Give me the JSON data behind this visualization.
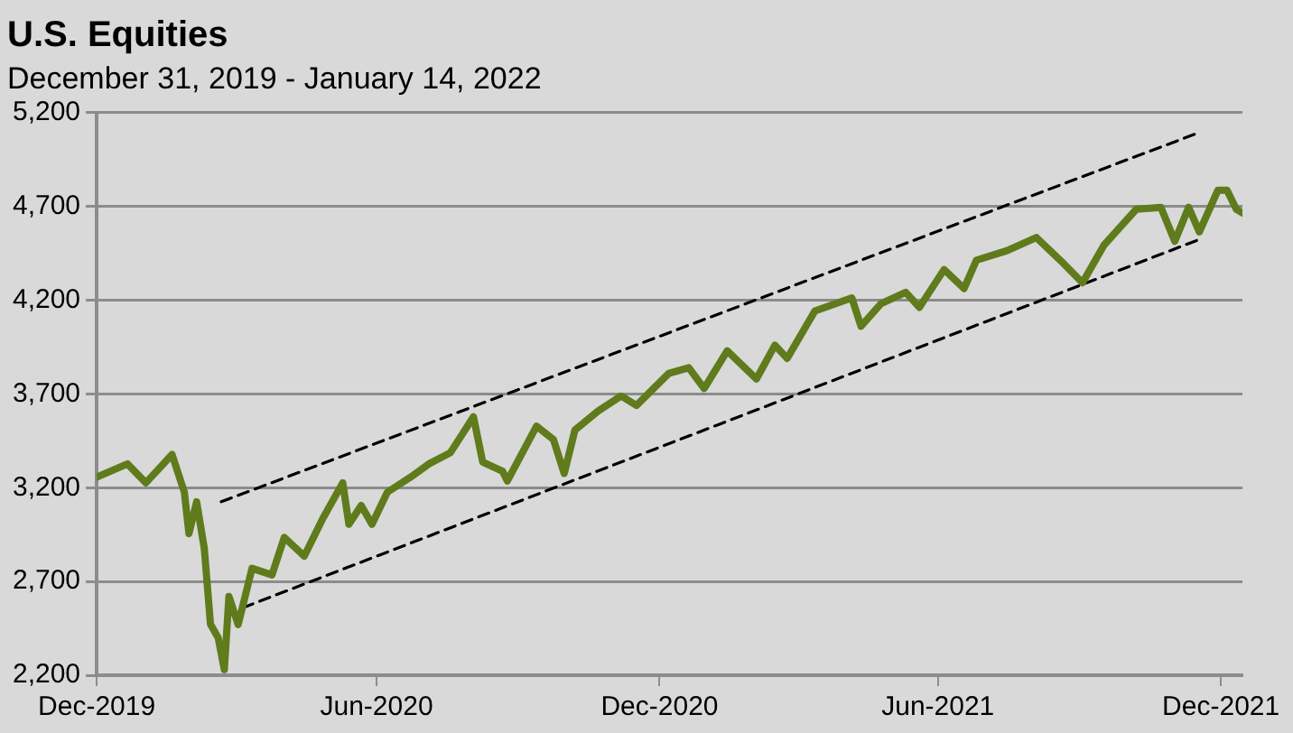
{
  "chart_data": {
    "type": "line",
    "title": "U.S. Equities",
    "subtitle": "December 31, 2019 - January 14, 2022",
    "x": [
      "2019-12-31",
      "2020-01-20",
      "2020-02-01",
      "2020-02-18",
      "2020-02-26",
      "2020-02-29",
      "2020-03-05",
      "2020-03-10",
      "2020-03-14",
      "2020-03-19",
      "2020-03-23",
      "2020-03-26",
      "2020-04-01",
      "2020-04-10",
      "2020-04-23",
      "2020-05-01",
      "2020-05-14",
      "2020-05-26",
      "2020-06-08",
      "2020-06-12",
      "2020-06-20",
      "2020-06-27",
      "2020-07-07",
      "2020-07-22",
      "2020-08-03",
      "2020-08-17",
      "2020-09-01",
      "2020-09-07",
      "2020-09-20",
      "2020-09-23",
      "2020-10-12",
      "2020-10-23",
      "2020-10-30",
      "2020-11-06",
      "2020-11-21",
      "2020-12-06",
      "2020-12-16",
      "2021-01-06",
      "2021-01-19",
      "2021-01-29",
      "2021-02-13",
      "2021-03-04",
      "2021-03-16",
      "2021-03-24",
      "2021-04-11",
      "2021-05-05",
      "2021-05-11",
      "2021-05-24",
      "2021-06-09",
      "2021-06-18",
      "2021-07-04",
      "2021-07-17",
      "2021-07-25",
      "2021-08-14",
      "2021-09-02",
      "2021-09-20",
      "2021-10-02",
      "2021-10-16",
      "2021-11-06",
      "2021-11-22",
      "2021-12-01",
      "2021-12-10",
      "2021-12-17",
      "2021-12-29",
      "2022-01-04",
      "2022-01-10",
      "2022-01-14"
    ],
    "series": [
      {
        "color": "#5f7b1c",
        "line_style": "solid",
        "values": [
          3256,
          3327,
          3226,
          3377,
          3176,
          2955,
          3125,
          2874,
          2472,
          2400,
          2230,
          2620,
          2470,
          2770,
          2735,
          2935,
          2835,
          3035,
          3226,
          3005,
          3105,
          3005,
          3176,
          3256,
          3327,
          3387,
          3578,
          3337,
          3287,
          3236,
          3528,
          3457,
          3276,
          3508,
          3609,
          3689,
          3639,
          3810,
          3840,
          3729,
          3930,
          3780,
          3960,
          3890,
          4142,
          4212,
          4061,
          4182,
          4242,
          4162,
          4363,
          4262,
          4413,
          4464,
          4534,
          4393,
          4293,
          4494,
          4685,
          4695,
          4514,
          4695,
          4564,
          4786,
          4786,
          4685,
          4665
        ]
      },
      {
        "color": "#000000",
        "line_style": "dashed",
        "x": [
          "2020-03-21",
          "2021-12-14"
        ],
        "values": [
          3125,
          5085
        ]
      },
      {
        "color": "#000000",
        "line_style": "dashed",
        "x": [
          "2020-04-04",
          "2021-12-17"
        ],
        "values": [
          2560,
          4524
        ]
      }
    ],
    "xlim": [
      "2019-12-31",
      "2022-01-14"
    ],
    "xticks": [
      {
        "value": "2019-12-31",
        "label": "Dec-2019"
      },
      {
        "value": "2020-06-30",
        "label": "Jun-2020"
      },
      {
        "value": "2020-12-31",
        "label": "Dec-2020"
      },
      {
        "value": "2021-06-30",
        "label": "Jun-2021"
      },
      {
        "value": "2021-12-31",
        "label": "Dec-2021"
      }
    ],
    "ylim": [
      2200,
      5200
    ],
    "yticks": [
      {
        "value": 2200,
        "label": "2,200"
      },
      {
        "value": 2700,
        "label": "2,700"
      },
      {
        "value": 3200,
        "label": "3,200"
      },
      {
        "value": 3700,
        "label": "3,700"
      },
      {
        "value": 4200,
        "label": "4,200"
      },
      {
        "value": 4700,
        "label": "4,700"
      },
      {
        "value": 5200,
        "label": "5,200"
      }
    ],
    "grid": "y",
    "legend": false,
    "marker": "none"
  }
}
